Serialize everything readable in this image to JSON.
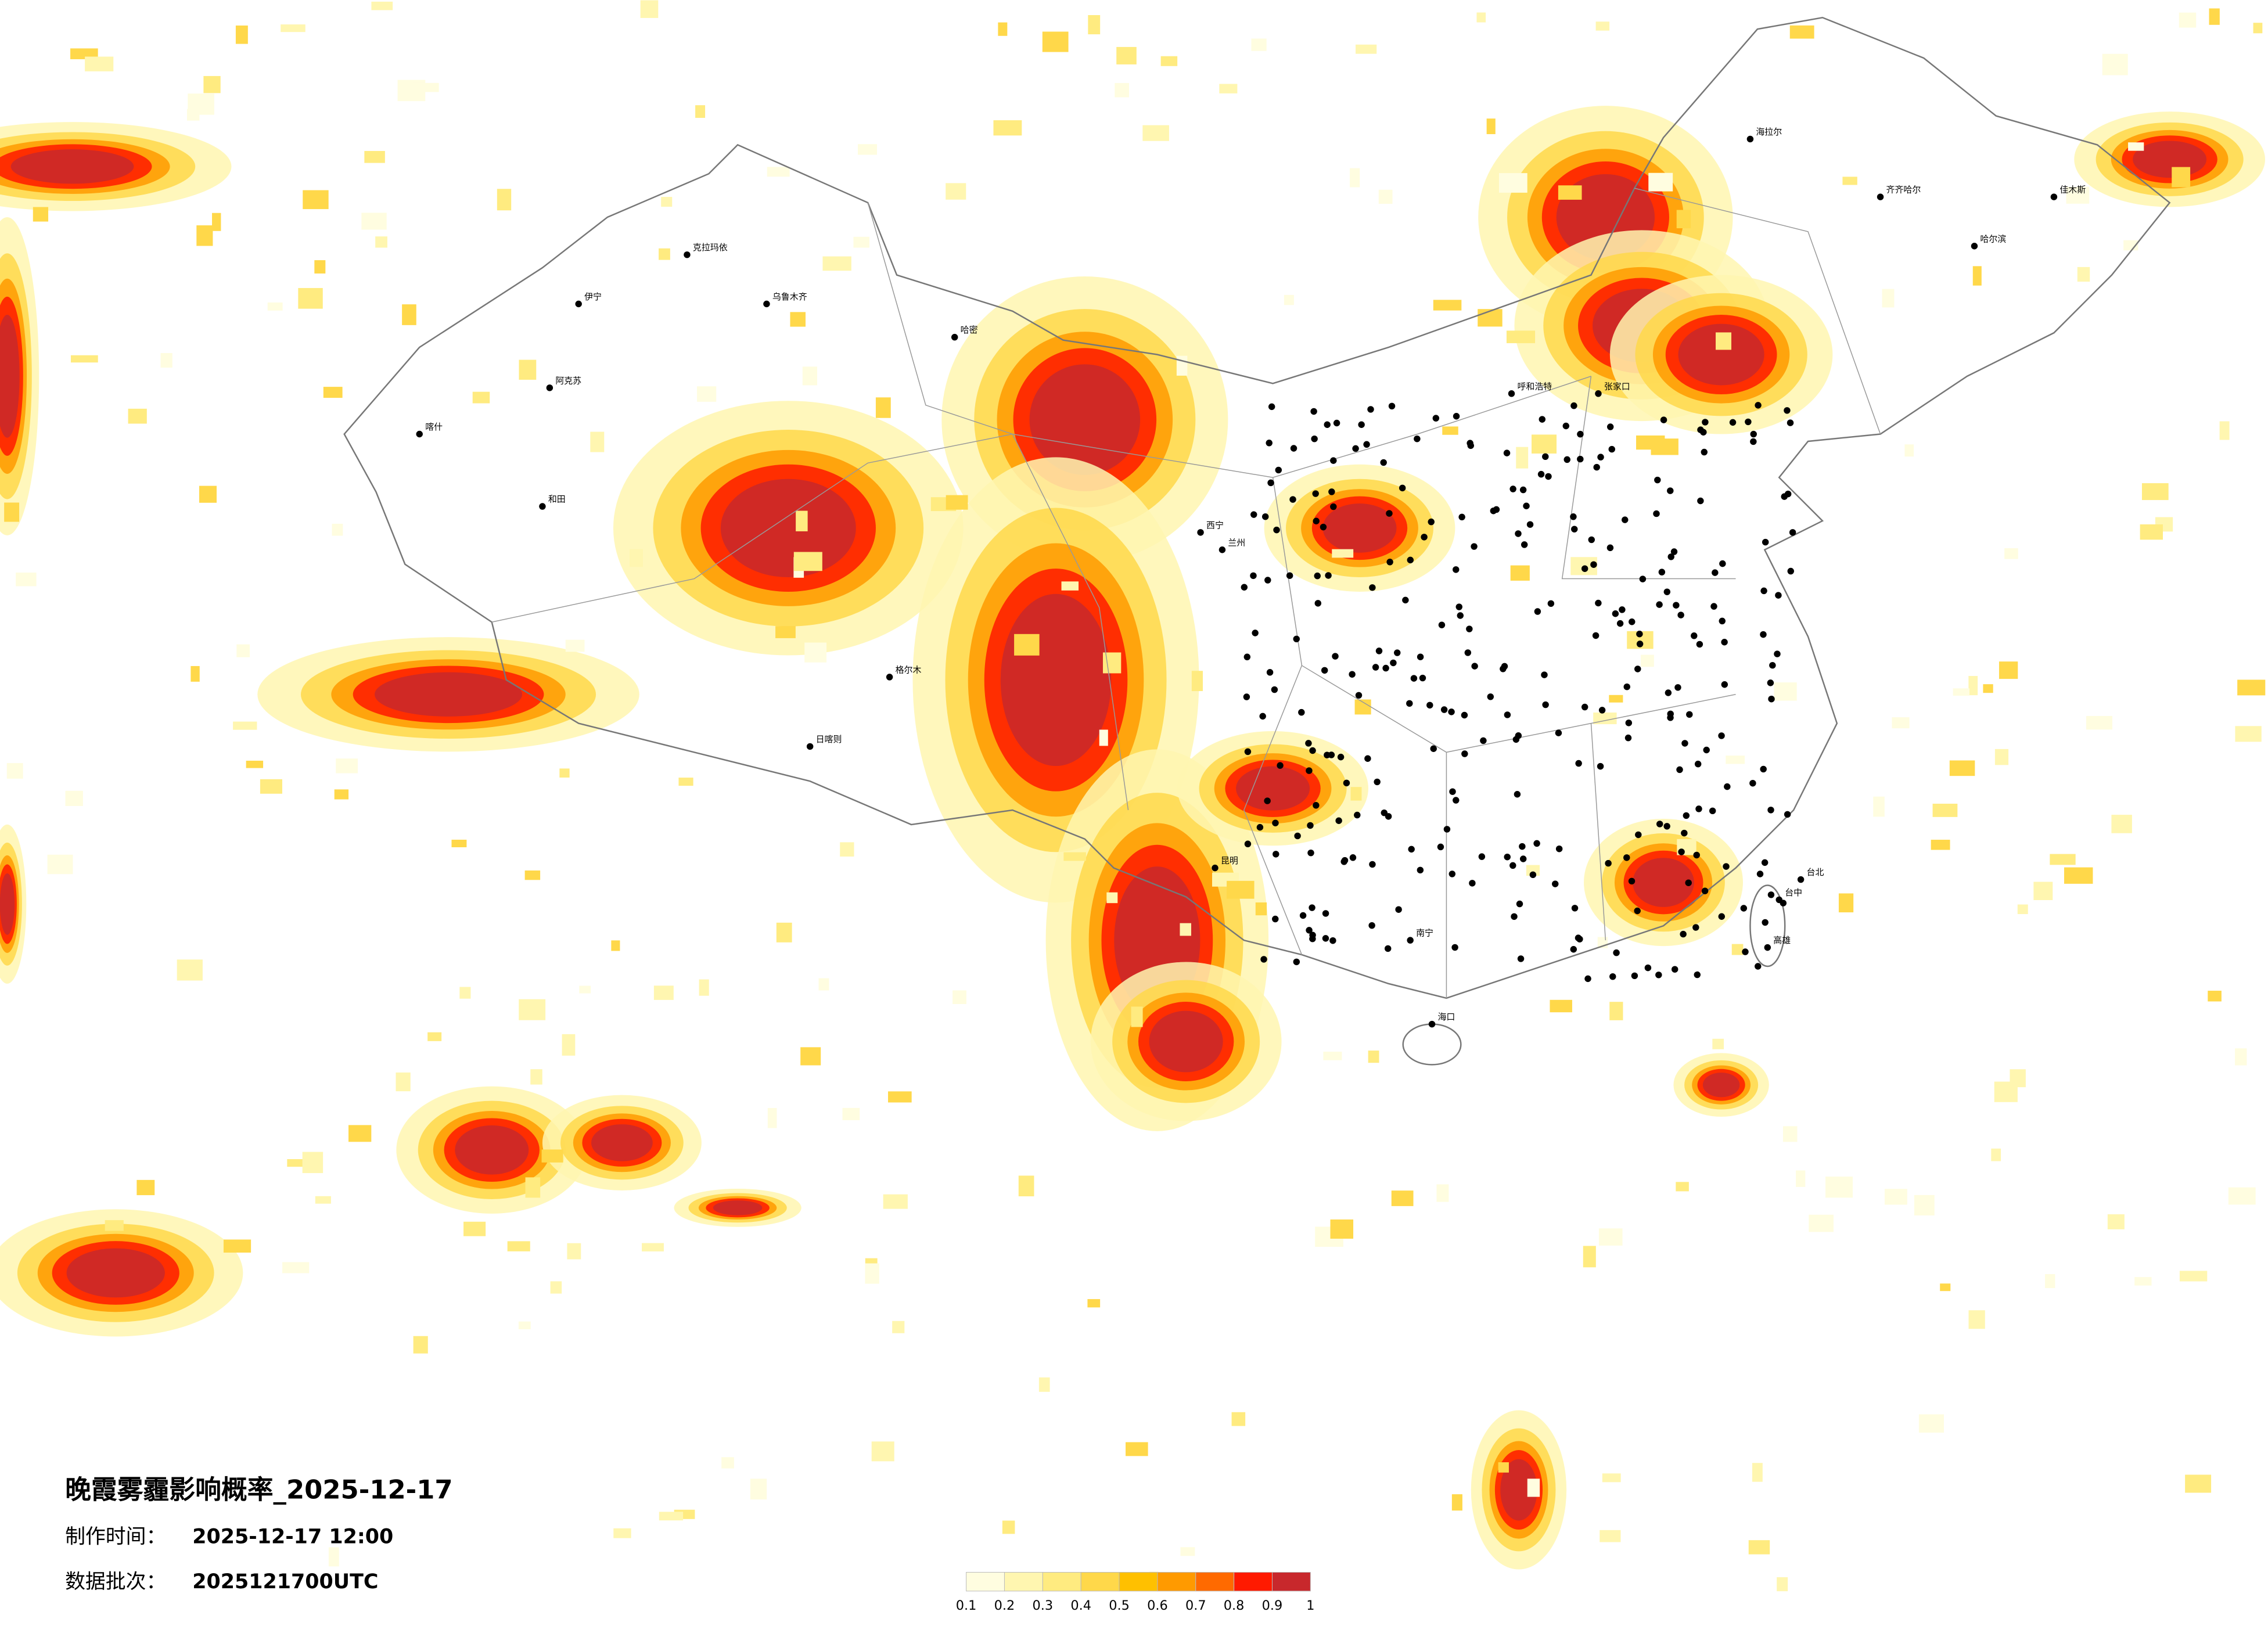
{
  "header": {
    "title": "晚霞雾霾影响概率_2025-12-17",
    "made_label": "制作时间：",
    "made_value": "2025-12-17 12:00",
    "batch_label": "数据批次：",
    "batch_value": "2025121700UTC"
  },
  "legend": {
    "colors": [
      "#fffde0",
      "#fff6b0",
      "#ffeb80",
      "#ffd84a",
      "#ffc000",
      "#ff9a00",
      "#ff6a00",
      "#ff1a00",
      "#c8282c"
    ],
    "ticks": [
      0.1,
      0.2,
      0.3,
      0.4,
      0.5,
      0.6,
      0.7,
      0.8,
      0.9,
      1
    ]
  },
  "cities": [
    "克拉玛依",
    "伊宁",
    "阿克苏",
    "喀什",
    "和田",
    "乌鲁木齐",
    "哈密",
    "格尔木",
    "日喀则",
    "海拉尔",
    "齐齐哈尔",
    "哈尔滨",
    "佳木斯",
    "呼和浩特",
    "张家口",
    "西宁",
    "兰州",
    "昆明",
    "南宁",
    "海口",
    "台北",
    "台中",
    "高雄"
  ]
}
